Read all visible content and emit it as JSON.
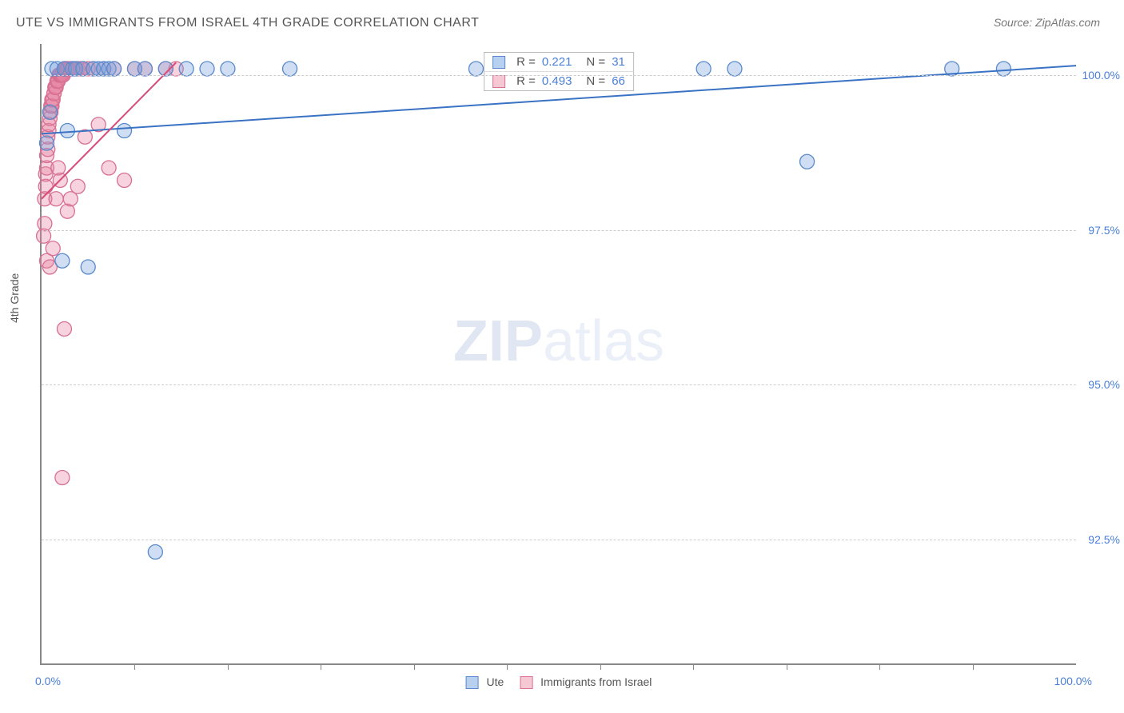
{
  "title": "UTE VS IMMIGRANTS FROM ISRAEL 4TH GRADE CORRELATION CHART",
  "source": "Source: ZipAtlas.com",
  "watermark": {
    "bold": "ZIP",
    "light": "atlas"
  },
  "ylabel": "4th Grade",
  "legend": {
    "series_a": {
      "label": "Ute",
      "fill": "#b8d0f0",
      "stroke": "#5a8acb"
    },
    "series_b": {
      "label": "Immigrants from Israel",
      "fill": "#f5c8d4",
      "stroke": "#d87093"
    }
  },
  "stats": {
    "rows": [
      {
        "swatch_fill": "#b8d0f0",
        "swatch_stroke": "#5a8acb",
        "r_label": "R =",
        "r": "0.221",
        "n_label": "N =",
        "n": "31"
      },
      {
        "swatch_fill": "#f5c8d4",
        "swatch_stroke": "#d87093",
        "r_label": "R =",
        "r": "0.493",
        "n_label": "N =",
        "n": "66"
      }
    ]
  },
  "chart": {
    "type": "scatter",
    "xlim": [
      0,
      100
    ],
    "ylim": [
      90.5,
      100.5
    ],
    "yticks": [
      {
        "v": 100.0,
        "label": "100.0%"
      },
      {
        "v": 97.5,
        "label": "97.5%"
      },
      {
        "v": 95.0,
        "label": "95.0%"
      },
      {
        "v": 92.5,
        "label": "92.5%"
      }
    ],
    "xticks_major": [
      0,
      100
    ],
    "xticks_minor": [
      9,
      18,
      27,
      36,
      45,
      54,
      63,
      72,
      81,
      90
    ],
    "xtick_labels": {
      "0": "0.0%",
      "100": "100.0%"
    },
    "grid_color": "#cccccc",
    "background": "#ffffff",
    "series": {
      "ute": {
        "color_fill": "rgba(120,160,220,0.35)",
        "color_stroke": "#5a8acb",
        "marker_r": 9,
        "trend": {
          "x1": 0,
          "y1": 99.05,
          "x2": 100,
          "y2": 100.15,
          "stroke": "#3a72c4",
          "width": 2
        },
        "points": [
          [
            0.5,
            98.9
          ],
          [
            0.8,
            99.4
          ],
          [
            1.0,
            100.1
          ],
          [
            1.5,
            100.1
          ],
          [
            2.0,
            97.0
          ],
          [
            2.2,
            100.1
          ],
          [
            2.5,
            99.1
          ],
          [
            3.0,
            100.1
          ],
          [
            3.3,
            100.1
          ],
          [
            4.0,
            100.1
          ],
          [
            4.5,
            96.9
          ],
          [
            5.0,
            100.1
          ],
          [
            5.5,
            100.1
          ],
          [
            6.0,
            100.1
          ],
          [
            6.5,
            100.1
          ],
          [
            7.0,
            100.1
          ],
          [
            8.0,
            99.1
          ],
          [
            9.0,
            100.1
          ],
          [
            10.0,
            100.1
          ],
          [
            11.0,
            92.3
          ],
          [
            12.0,
            100.1
          ],
          [
            14.0,
            100.1
          ],
          [
            16.0,
            100.1
          ],
          [
            18.0,
            100.1
          ],
          [
            24.0,
            100.1
          ],
          [
            42.0,
            100.1
          ],
          [
            64.0,
            100.1
          ],
          [
            67.0,
            100.1
          ],
          [
            74.0,
            98.6
          ],
          [
            88.0,
            100.1
          ],
          [
            93.0,
            100.1
          ]
        ]
      },
      "israel": {
        "color_fill": "rgba(230,130,160,0.35)",
        "color_stroke": "#d87093",
        "marker_r": 9,
        "trend": {
          "x1": 0,
          "y1": 98.0,
          "x2": 13,
          "y2": 100.2,
          "stroke": "#d64d7a",
          "width": 2
        },
        "points": [
          [
            0.2,
            97.4
          ],
          [
            0.3,
            97.6
          ],
          [
            0.3,
            98.0
          ],
          [
            0.4,
            98.2
          ],
          [
            0.4,
            98.4
          ],
          [
            0.5,
            98.5
          ],
          [
            0.5,
            98.7
          ],
          [
            0.5,
            97.0
          ],
          [
            0.6,
            98.8
          ],
          [
            0.6,
            99.0
          ],
          [
            0.7,
            99.1
          ],
          [
            0.7,
            99.2
          ],
          [
            0.8,
            99.3
          ],
          [
            0.8,
            96.9
          ],
          [
            0.9,
            99.4
          ],
          [
            0.9,
            99.5
          ],
          [
            1.0,
            99.5
          ],
          [
            1.0,
            99.6
          ],
          [
            1.1,
            99.6
          ],
          [
            1.1,
            97.2
          ],
          [
            1.2,
            99.7
          ],
          [
            1.2,
            99.7
          ],
          [
            1.3,
            99.8
          ],
          [
            1.3,
            99.8
          ],
          [
            1.4,
            99.8
          ],
          [
            1.4,
            98.0
          ],
          [
            1.5,
            99.9
          ],
          [
            1.5,
            99.9
          ],
          [
            1.6,
            99.9
          ],
          [
            1.6,
            98.5
          ],
          [
            1.7,
            100.0
          ],
          [
            1.7,
            100.0
          ],
          [
            1.8,
            100.0
          ],
          [
            1.8,
            98.3
          ],
          [
            1.9,
            100.0
          ],
          [
            1.9,
            100.0
          ],
          [
            2.0,
            100.0
          ],
          [
            2.0,
            93.5
          ],
          [
            2.1,
            100.0
          ],
          [
            2.2,
            100.1
          ],
          [
            2.2,
            95.9
          ],
          [
            2.3,
            100.1
          ],
          [
            2.4,
            100.1
          ],
          [
            2.5,
            100.1
          ],
          [
            2.5,
            97.8
          ],
          [
            2.6,
            100.1
          ],
          [
            2.8,
            100.1
          ],
          [
            2.8,
            98.0
          ],
          [
            3.0,
            100.1
          ],
          [
            3.2,
            100.1
          ],
          [
            3.5,
            100.1
          ],
          [
            3.5,
            98.2
          ],
          [
            3.8,
            100.1
          ],
          [
            4.0,
            100.1
          ],
          [
            4.2,
            99.0
          ],
          [
            4.5,
            100.1
          ],
          [
            5.0,
            100.1
          ],
          [
            5.5,
            99.2
          ],
          [
            6.0,
            100.1
          ],
          [
            6.5,
            98.5
          ],
          [
            7.0,
            100.1
          ],
          [
            8.0,
            98.3
          ],
          [
            9.0,
            100.1
          ],
          [
            10.0,
            100.1
          ],
          [
            12.0,
            100.1
          ],
          [
            13.0,
            100.1
          ]
        ]
      }
    }
  }
}
